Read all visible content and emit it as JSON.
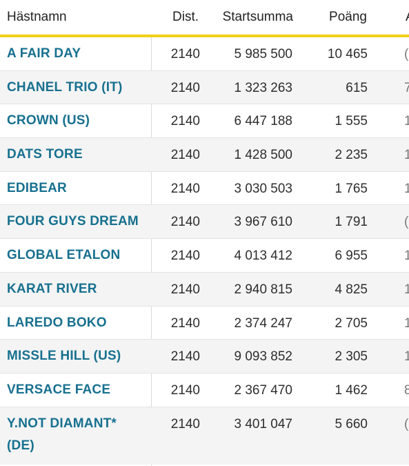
{
  "table": {
    "headers": {
      "name": "Hästnamn",
      "distance": "Dist.",
      "start_sum": "Startsumma",
      "points": "Poäng",
      "next": "A"
    },
    "rows": [
      {
        "name": "A FAIR DAY",
        "distance": "2140",
        "start_sum": "5 985 500",
        "points": "10 465",
        "next": "("
      },
      {
        "name": "CHANEL TRIO (IT)",
        "distance": "2140",
        "start_sum": "1 323 263",
        "points": "615",
        "next": "7"
      },
      {
        "name": "CROWN (US)",
        "distance": "2140",
        "start_sum": "6 447 188",
        "points": "1 555",
        "next": "1"
      },
      {
        "name": "DATS TORE",
        "distance": "2140",
        "start_sum": "1 428 500",
        "points": "2 235",
        "next": "1"
      },
      {
        "name": "EDIBEAR",
        "distance": "2140",
        "start_sum": "3 030 503",
        "points": "1 765",
        "next": "1"
      },
      {
        "name": "FOUR GUYS DREAM",
        "distance": "2140",
        "start_sum": "3 967 610",
        "points": "1 791",
        "next": "("
      },
      {
        "name": "GLOBAL ETALON",
        "distance": "2140",
        "start_sum": "4 013 412",
        "points": "6 955",
        "next": "1"
      },
      {
        "name": "KARAT RIVER",
        "distance": "2140",
        "start_sum": "2 940 815",
        "points": "4 825",
        "next": "1"
      },
      {
        "name": "LAREDO BOKO",
        "distance": "2140",
        "start_sum": "2 374 247",
        "points": "2 705",
        "next": "1"
      },
      {
        "name": "MISSLE HILL (US)",
        "distance": "2140",
        "start_sum": "9 093 852",
        "points": "2 305",
        "next": "1"
      },
      {
        "name": "VERSACE FACE",
        "distance": "2140",
        "start_sum": "2 367 470",
        "points": "1 462",
        "next": "8"
      },
      {
        "name": "Y.NOT DIAMANT* (DE)",
        "distance": "2140",
        "start_sum": "3 401 047",
        "points": "5 660",
        "next": "("
      }
    ]
  },
  "colors": {
    "accent_underline": "#f2cf1b",
    "horse_link": "#17708f",
    "row_alt": "#f4f4f4"
  }
}
